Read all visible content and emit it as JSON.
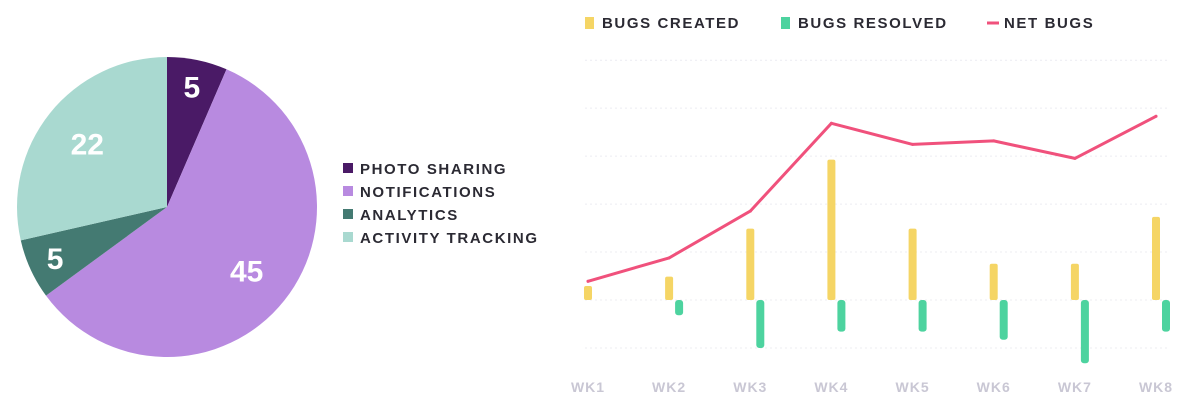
{
  "chart_data": [
    {
      "type": "pie",
      "slices": [
        {
          "name": "PHOTO SHARING",
          "value": 5,
          "label": "5",
          "color": "#4a1a66"
        },
        {
          "name": "NOTIFICATIONS",
          "value": 45,
          "label": "45",
          "color": "#b88ae0"
        },
        {
          "name": "ANALYTICS",
          "value": 5,
          "label": "5",
          "color": "#447a72"
        },
        {
          "name": "ACTIVITY TRACKING",
          "value": 22,
          "label": "22",
          "color": "#a9d9d0"
        }
      ],
      "legend": "right"
    },
    {
      "type": "bar",
      "categories": [
        "WK1",
        "WK2",
        "WK3",
        "WK4",
        "WK5",
        "WK6",
        "WK7",
        "WK8"
      ],
      "series": [
        {
          "name": "BUGS CREATED",
          "type": "bar",
          "color": "#f5d565",
          "values": [
            1.2,
            2,
            6.1,
            12,
            6.1,
            3.1,
            3.1,
            7.1
          ]
        },
        {
          "name": "BUGS RESOLVED",
          "type": "bar",
          "color": "#4dd39f",
          "values": [
            0,
            -1.3,
            -4.1,
            -2.7,
            -2.7,
            -3.4,
            -5.4,
            -2.7
          ]
        },
        {
          "name": "NET BUGS",
          "type": "line",
          "color": "#f0517c",
          "values": [
            1.6,
            3.6,
            7.6,
            15.1,
            13.3,
            13.6,
            12.1,
            15.7
          ]
        }
      ],
      "ylim": [
        -4.4,
        20.5
      ],
      "grid": true,
      "legend": "top"
    }
  ]
}
